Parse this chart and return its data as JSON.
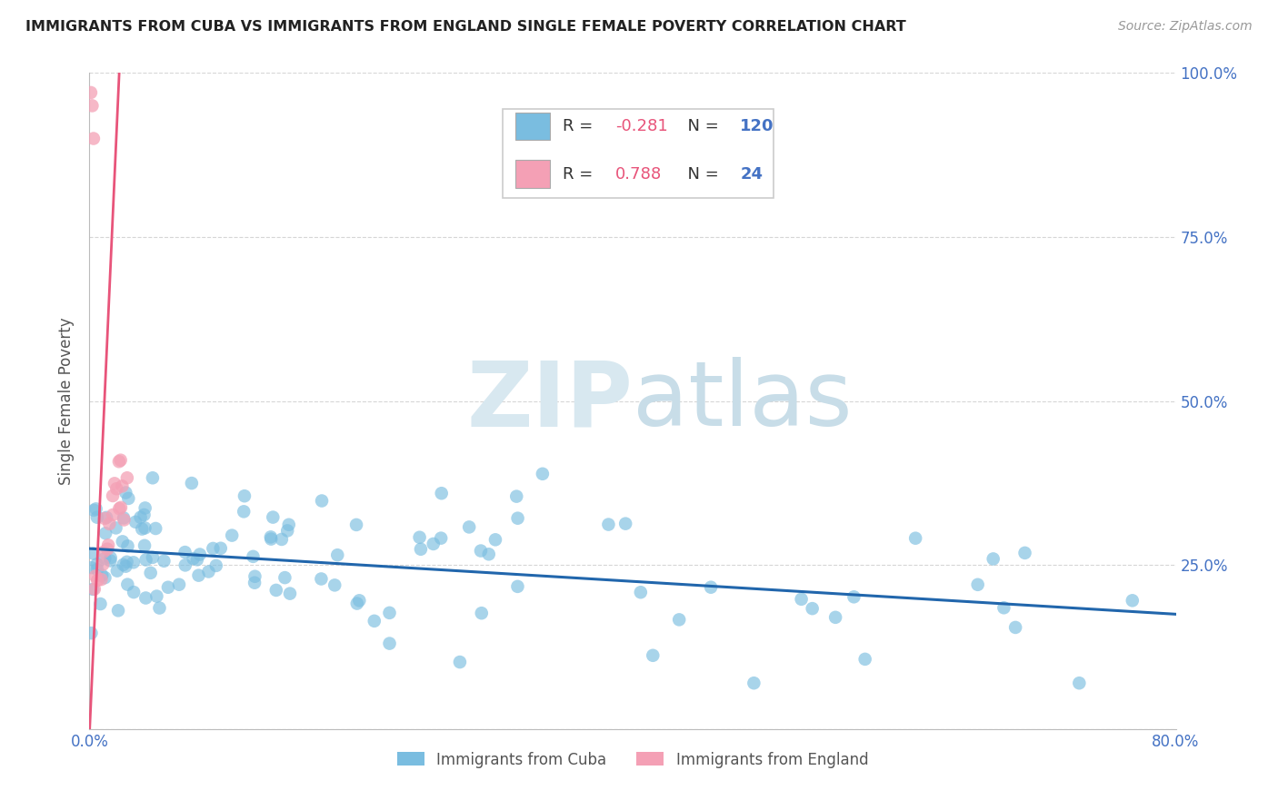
{
  "title": "IMMIGRANTS FROM CUBA VS IMMIGRANTS FROM ENGLAND SINGLE FEMALE POVERTY CORRELATION CHART",
  "source": "Source: ZipAtlas.com",
  "ylabel": "Single Female Poverty",
  "watermark": "ZIPatlas",
  "xlim": [
    0.0,
    0.8
  ],
  "ylim": [
    0.0,
    1.0
  ],
  "xticks": [
    0.0,
    0.1,
    0.2,
    0.3,
    0.4,
    0.5,
    0.6,
    0.7,
    0.8
  ],
  "xticklabels": [
    "0.0%",
    "",
    "",
    "",
    "",
    "",
    "",
    "",
    "80.0%"
  ],
  "yticks": [
    0.0,
    0.25,
    0.5,
    0.75,
    1.0
  ],
  "yticklabels_right": [
    "",
    "25.0%",
    "50.0%",
    "75.0%",
    "100.0%"
  ],
  "legend1_label": "Immigrants from Cuba",
  "legend2_label": "Immigrants from England",
  "r_cuba": -0.281,
  "n_cuba": 120,
  "r_england": 0.788,
  "n_england": 24,
  "color_cuba": "#7abde0",
  "color_england": "#f4a0b5",
  "trendline_cuba": "#2166ac",
  "trendline_england": "#e8547a",
  "background_color": "#ffffff",
  "grid_color": "#cccccc",
  "title_color": "#222222",
  "axis_label_color": "#555555",
  "tick_color": "#4472c4",
  "watermark_color": "#d8e8f0"
}
